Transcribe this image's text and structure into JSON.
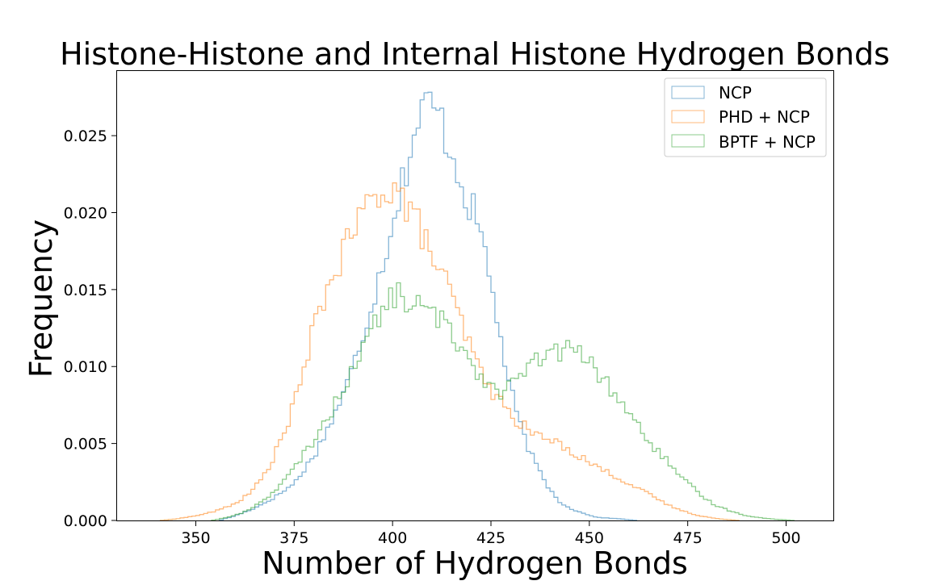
{
  "chart_data": {
    "type": "histogram",
    "title": "Histone-Histone and Internal Histone Hydrogen Bonds",
    "xlabel": "Number of Hydrogen Bonds",
    "ylabel": "Frequency",
    "xlim": [
      330,
      512
    ],
    "ylim": [
      0,
      0.0292
    ],
    "xticks": [
      350,
      375,
      400,
      425,
      450,
      475,
      500
    ],
    "yticks": [
      0.0,
      0.005,
      0.01,
      0.015,
      0.02,
      0.025
    ],
    "xtick_labels": [
      "350",
      "375",
      "400",
      "425",
      "450",
      "475",
      "500"
    ],
    "ytick_labels": [
      "0.000",
      "0.005",
      "0.010",
      "0.015",
      "0.020",
      "0.025"
    ],
    "grid": false,
    "legend_position": "top-right",
    "bin_width": 1,
    "series": [
      {
        "name": "NCP",
        "color": "#1f77b4",
        "points": [
          [
            356,
            0
          ],
          [
            360,
            0.0003
          ],
          [
            365,
            0.0008
          ],
          [
            370,
            0.0015
          ],
          [
            375,
            0.0024
          ],
          [
            380,
            0.0042
          ],
          [
            384,
            0.0062
          ],
          [
            388,
            0.0085
          ],
          [
            391,
            0.0108
          ],
          [
            394,
            0.0135
          ],
          [
            397,
            0.0162
          ],
          [
            400,
            0.0195
          ],
          [
            403,
            0.0225
          ],
          [
            405,
            0.0245
          ],
          [
            407,
            0.0262
          ],
          [
            409,
            0.0272
          ],
          [
            411,
            0.0266
          ],
          [
            413,
            0.0255
          ],
          [
            415,
            0.024
          ],
          [
            417,
            0.0225
          ],
          [
            419,
            0.0208
          ],
          [
            421,
            0.0198
          ],
          [
            423,
            0.018
          ],
          [
            425,
            0.0155
          ],
          [
            427,
            0.0125
          ],
          [
            429,
            0.0095
          ],
          [
            431,
            0.0075
          ],
          [
            433,
            0.0057
          ],
          [
            436,
            0.0038
          ],
          [
            439,
            0.0024
          ],
          [
            442,
            0.0013
          ],
          [
            445,
            0.0008
          ],
          [
            448,
            0.0005
          ],
          [
            452,
            0.0002
          ],
          [
            458,
            0.0001
          ],
          [
            462,
            0
          ]
        ]
      },
      {
        "name": "PHD + NCP",
        "color": "#ff7f0e",
        "points": [
          [
            341,
            0
          ],
          [
            345,
            0.0001
          ],
          [
            350,
            0.0003
          ],
          [
            355,
            0.0006
          ],
          [
            360,
            0.0011
          ],
          [
            364,
            0.0018
          ],
          [
            368,
            0.0032
          ],
          [
            371,
            0.0048
          ],
          [
            374,
            0.0068
          ],
          [
            377,
            0.0092
          ],
          [
            380,
            0.0125
          ],
          [
            383,
            0.0148
          ],
          [
            386,
            0.0165
          ],
          [
            389,
            0.0182
          ],
          [
            392,
            0.0198
          ],
          [
            395,
            0.0208
          ],
          [
            398,
            0.0218
          ],
          [
            401,
            0.0216
          ],
          [
            404,
            0.0202
          ],
          [
            407,
            0.019
          ],
          [
            410,
            0.0172
          ],
          [
            413,
            0.0158
          ],
          [
            416,
            0.0138
          ],
          [
            419,
            0.0118
          ],
          [
            422,
            0.0098
          ],
          [
            425,
            0.0085
          ],
          [
            428,
            0.0075
          ],
          [
            431,
            0.0066
          ],
          [
            434,
            0.006
          ],
          [
            437,
            0.0055
          ],
          [
            440,
            0.0052
          ],
          [
            443,
            0.0049
          ],
          [
            446,
            0.0044
          ],
          [
            450,
            0.0038
          ],
          [
            454,
            0.0032
          ],
          [
            458,
            0.0027
          ],
          [
            462,
            0.0021
          ],
          [
            466,
            0.0016
          ],
          [
            470,
            0.001
          ],
          [
            474,
            0.0006
          ],
          [
            478,
            0.0003
          ],
          [
            483,
            0.0001
          ],
          [
            488,
            0
          ]
        ]
      },
      {
        "name": "BPTF + NCP",
        "color": "#2ca02c",
        "points": [
          [
            354,
            0
          ],
          [
            358,
            0.0002
          ],
          [
            362,
            0.0005
          ],
          [
            366,
            0.0011
          ],
          [
            370,
            0.0019
          ],
          [
            374,
            0.003
          ],
          [
            378,
            0.0045
          ],
          [
            382,
            0.006
          ],
          [
            386,
            0.0078
          ],
          [
            389,
            0.0095
          ],
          [
            392,
            0.011
          ],
          [
            395,
            0.0125
          ],
          [
            398,
            0.0138
          ],
          [
            401,
            0.0148
          ],
          [
            404,
            0.0142
          ],
          [
            407,
            0.0138
          ],
          [
            410,
            0.0135
          ],
          [
            413,
            0.0128
          ],
          [
            416,
            0.0118
          ],
          [
            419,
            0.0108
          ],
          [
            422,
            0.0095
          ],
          [
            425,
            0.0088
          ],
          [
            428,
            0.0083
          ],
          [
            431,
            0.009
          ],
          [
            434,
            0.0098
          ],
          [
            437,
            0.0104
          ],
          [
            440,
            0.0108
          ],
          [
            443,
            0.011
          ],
          [
            446,
            0.0112
          ],
          [
            449,
            0.0106
          ],
          [
            452,
            0.0096
          ],
          [
            455,
            0.0087
          ],
          [
            458,
            0.0078
          ],
          [
            461,
            0.0066
          ],
          [
            464,
            0.0055
          ],
          [
            467,
            0.0046
          ],
          [
            470,
            0.0038
          ],
          [
            473,
            0.0028
          ],
          [
            476,
            0.0022
          ],
          [
            479,
            0.0015
          ],
          [
            482,
            0.001
          ],
          [
            486,
            0.0006
          ],
          [
            490,
            0.0003
          ],
          [
            496,
            0.0001
          ],
          [
            502,
            0
          ]
        ]
      }
    ]
  }
}
